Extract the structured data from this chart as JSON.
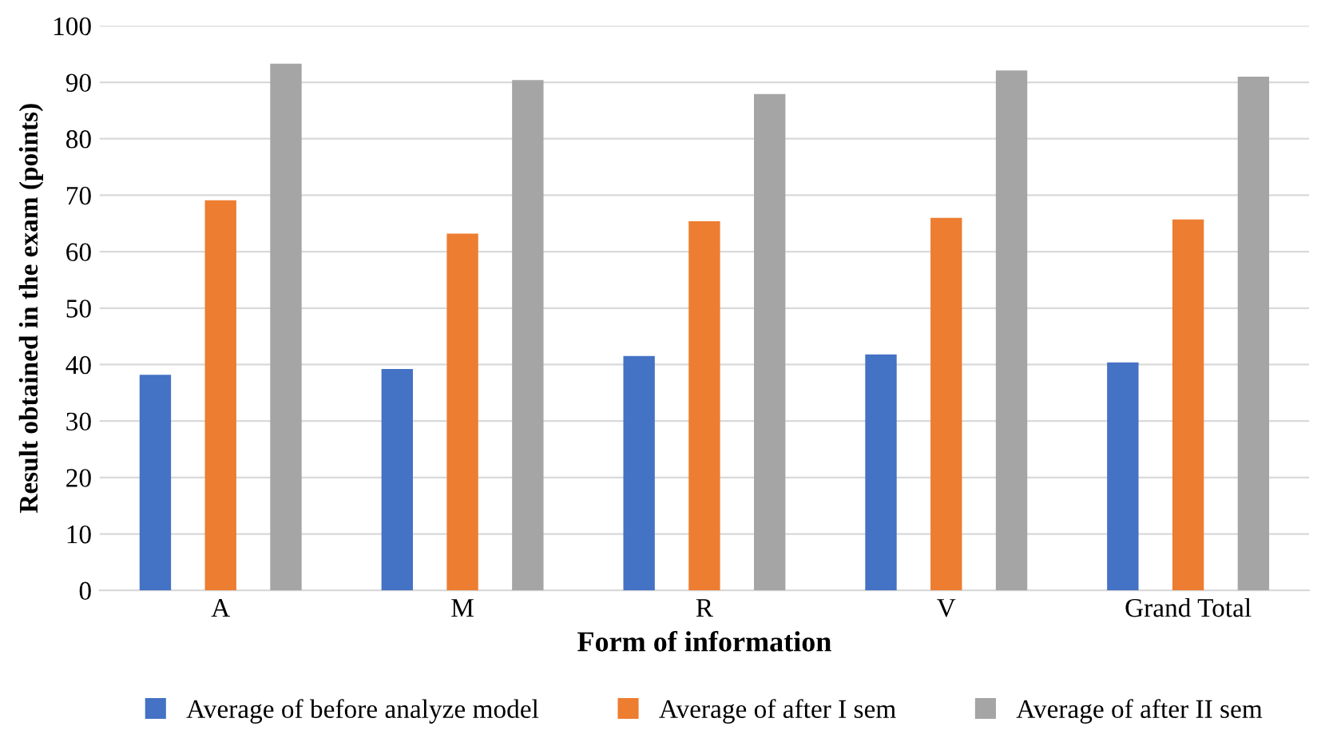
{
  "chart_data": {
    "type": "bar",
    "xlabel": "Form of information",
    "ylabel": "Result obtained in the exam (points)",
    "categories": [
      "A",
      "M",
      "R",
      "V",
      "Grand Total"
    ],
    "series": [
      {
        "name": "Average of before analyze model",
        "color": "#4472c4",
        "values": [
          38.2,
          39.2,
          41.5,
          41.8,
          40.4
        ]
      },
      {
        "name": "Average of after I sem",
        "color": "#ed7d31",
        "values": [
          69.1,
          63.2,
          65.4,
          66.0,
          65.7
        ]
      },
      {
        "name": "Average of after II sem",
        "color": "#a5a5a5",
        "values": [
          93.3,
          90.4,
          87.9,
          92.1,
          91.0
        ]
      }
    ],
    "ylim": [
      0,
      100
    ],
    "yticks": [
      0,
      10,
      20,
      30,
      40,
      50,
      60,
      70,
      80,
      90,
      100
    ],
    "grid": "y",
    "legend": "bottom"
  }
}
